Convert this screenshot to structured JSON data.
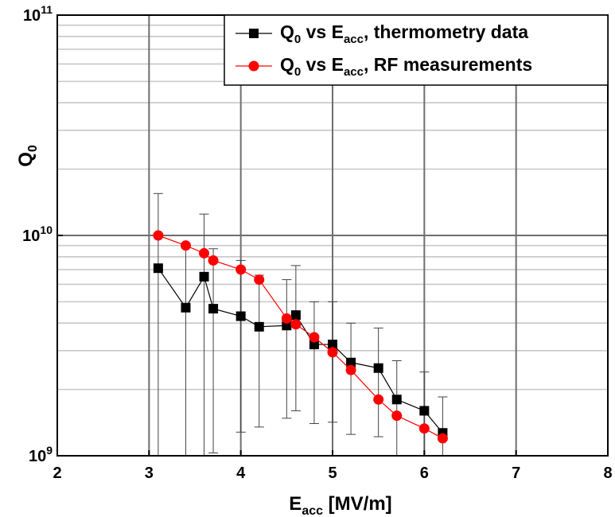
{
  "chart_data": {
    "type": "scatter",
    "title": "",
    "xlabel": {
      "main": "E",
      "sub": "acc",
      "rest": " [MV/m]"
    },
    "ylabel": {
      "main": "Q",
      "sub": "0"
    },
    "xlim": [
      2,
      8
    ],
    "ylim": [
      1000000000,
      100000000000
    ],
    "yscale": "log",
    "grid": true,
    "legend_position": "top-right",
    "x_ticks": [
      "2",
      "3",
      "4",
      "5",
      "6",
      "7",
      "8"
    ],
    "y_ticks": [
      {
        "base": "10",
        "exp": "9"
      },
      {
        "base": "10",
        "exp": "10"
      },
      {
        "base": "10",
        "exp": "11"
      }
    ],
    "series": [
      {
        "name": {
          "a": "Q",
          "a_sub": "0",
          "b": " vs E",
          "b_sub": "acc",
          "c": ", thermometry data"
        },
        "marker": "square",
        "color": "#000000",
        "x": [
          3.1,
          3.4,
          3.6,
          3.7,
          4.0,
          4.2,
          4.5,
          4.6,
          4.8,
          5.0,
          5.2,
          5.5,
          5.7,
          6.0,
          6.2
        ],
        "y": [
          7100000000.0,
          4700000000.0,
          6500000000.0,
          4650000000.0,
          4300000000.0,
          3850000000.0,
          3900000000.0,
          4350000000.0,
          3200000000.0,
          3200000000.0,
          2650000000.0,
          2500000000.0,
          1800000000.0,
          1600000000.0,
          1270000000.0
        ],
        "y_err_high": [
          15500000000.0,
          9200000000.0,
          12500000000.0,
          8700000000.0,
          7700000000.0,
          6600000000.0,
          6300000000.0,
          7300000000.0,
          5000000000.0,
          5000000000.0,
          4000000000.0,
          3800000000.0,
          2700000000.0,
          2400000000.0,
          1850000000.0
        ],
        "y_err_low": [
          1000000000.0,
          1000000000.0,
          1000000000.0,
          1030000000.0,
          1280000000.0,
          1350000000.0,
          1480000000.0,
          1600000000.0,
          1400000000.0,
          1420000000.0,
          1250000000.0,
          1220000000.0,
          1000000000.0,
          1000000000.0,
          1000000000.0
        ]
      },
      {
        "name": {
          "a": "Q",
          "a_sub": "0",
          "b": " vs E",
          "b_sub": "acc",
          "c": ", RF measurements"
        },
        "marker": "circle",
        "color": "#ff0000",
        "x": [
          3.1,
          3.4,
          3.6,
          3.7,
          4.0,
          4.2,
          4.5,
          4.6,
          4.8,
          5.0,
          5.2,
          5.5,
          5.7,
          6.0,
          6.2
        ],
        "y": [
          10000000000.0,
          9000000000.0,
          8300000000.0,
          7700000000.0,
          7000000000.0,
          6300000000.0,
          4200000000.0,
          3950000000.0,
          3450000000.0,
          2950000000.0,
          2450000000.0,
          1800000000.0,
          1520000000.0,
          1330000000.0,
          1200000000.0
        ]
      }
    ]
  }
}
